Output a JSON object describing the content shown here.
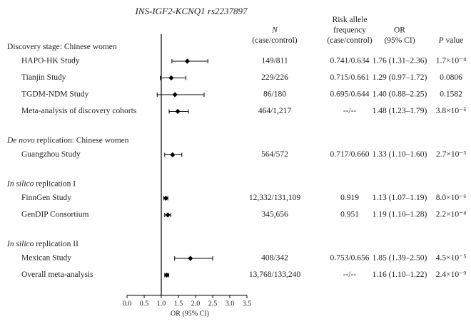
{
  "chart_data": {
    "type": "forest",
    "title": "INS-IGF2-KCNQ1 rs2237897",
    "column_headers": {
      "n": [
        [
          {
            "text": "N",
            "italic": true
          }
        ],
        [
          {
            "text": "(case/control)"
          }
        ]
      ],
      "raf": [
        [
          {
            "text": "Risk allele"
          }
        ],
        [
          {
            "text": "frequency"
          }
        ],
        [
          {
            "text": "(case/control)"
          }
        ]
      ],
      "or": [
        [
          {
            "text": "OR"
          }
        ],
        [
          {
            "text": "(95% CI)"
          }
        ]
      ],
      "p": [
        [
          {
            "text": "P",
            "italic": true
          },
          {
            "text": " value"
          }
        ]
      ]
    },
    "xlabel": "OR (95% CI)",
    "xlim": [
      0,
      3.5
    ],
    "xticks": [
      {
        "value": 0,
        "label": "0.0"
      },
      0.5,
      {
        "value": 1,
        "label": "1.0"
      },
      1.5,
      {
        "value": 2,
        "label": "2.0"
      },
      2.5,
      {
        "value": 3,
        "label": "3.0"
      },
      3.5
    ],
    "reference": 1,
    "color": "#000000",
    "groups": [
      {
        "title": [
          {
            "text": "Discovery stage: Chinese women"
          }
        ],
        "rows": [
          {
            "name": "HAPO-HK Study",
            "n": "149/811",
            "raf": "0.741/0.634",
            "or": 1.76,
            "lo": 1.31,
            "hi": 2.36,
            "or_label": "1.76 (1.31–2.36)",
            "p": "1.7×10⁻⁴"
          },
          {
            "name": "Tianjin Study",
            "n": "229/226",
            "raf": "0.715/0.661",
            "or": 1.29,
            "lo": 0.97,
            "hi": 1.72,
            "or_label": "1.29 (0.97–1.72)",
            "p": "0.0806"
          },
          {
            "name": "TGDM-NDM Study",
            "n": "86/180",
            "raf": "0.695/0.644",
            "or": 1.4,
            "lo": 0.88,
            "hi": 2.25,
            "or_label": "1.40 (0.88–2.25)",
            "p": "0.1582"
          },
          {
            "name": "Meta-analysis of discovery cohorts",
            "n": "464/1,217",
            "raf": "--/--",
            "or": 1.48,
            "lo": 1.23,
            "hi": 1.79,
            "or_label": "1.48 (1.23–1.79)",
            "p": "3.8×10⁻⁵"
          }
        ]
      },
      {
        "title": [
          {
            "text": "De novo",
            "italic": true
          },
          {
            "text": " replication: Chinese women"
          }
        ],
        "rows": [
          {
            "name": "Guangzhou Study",
            "n": "564/572",
            "raf": "0.717/0.660",
            "or": 1.33,
            "lo": 1.1,
            "hi": 1.6,
            "or_label": "1.33 (1.10–1.60)",
            "p": "2.7×10⁻³"
          }
        ]
      },
      {
        "title": [
          {
            "text": "In silico",
            "italic": true
          },
          {
            "text": " replication I"
          }
        ],
        "rows": [
          {
            "name": "FinnGen Study",
            "n": "12,332/131,109",
            "raf": "0.919",
            "or": 1.13,
            "lo": 1.07,
            "hi": 1.19,
            "or_label": "1.13 (1.07–1.19)",
            "p": "8.0×10⁻⁶"
          },
          {
            "name": "GenDIP Consortium",
            "n": "345,656",
            "raf": "0.951",
            "or": 1.19,
            "lo": 1.1,
            "hi": 1.28,
            "or_label": "1.19 (1.10–1.28)",
            "p": "2.2×10⁻⁴"
          }
        ]
      },
      {
        "title": [
          {
            "text": "In silico",
            "italic": true
          },
          {
            "text": " replication II"
          }
        ],
        "rows": [
          {
            "name": "Mexican Study",
            "n": "408/342",
            "raf": "0.753/0.656",
            "or": 1.85,
            "lo": 1.39,
            "hi": 2.5,
            "or_label": "1.85 (1.39–2.50)",
            "p": "4.5×10⁻⁵"
          },
          {
            "name": "Overall meta-analysis",
            "n": "13,768/133,240",
            "raf": "--/--",
            "or": 1.16,
            "lo": 1.1,
            "hi": 1.22,
            "or_label": "1.16 (1.10–1.22)",
            "p": "2.4×10⁻⁹"
          }
        ]
      }
    ]
  }
}
